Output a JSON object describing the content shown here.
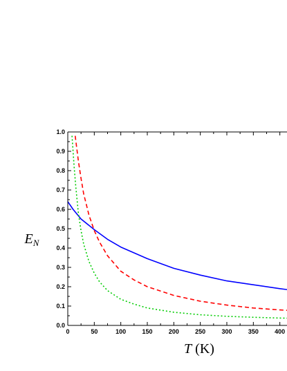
{
  "chart_data": {
    "type": "line",
    "xlabel": "T (K)",
    "xlabel_italic": "T",
    "xlabel_rest": " (K)",
    "ylabel": "E_N",
    "ylabel_main": "E",
    "ylabel_sub": "N",
    "xlim": [
      0,
      420
    ],
    "ylim": [
      0,
      1.0
    ],
    "x_ticks": [
      0,
      50,
      100,
      150,
      200,
      250,
      300,
      350,
      400
    ],
    "y_ticks": [
      0.0,
      0.1,
      0.2,
      0.3,
      0.4,
      0.5,
      0.6,
      0.7,
      0.8,
      0.9,
      1.0
    ],
    "x_tick_labels": [
      "0",
      "50",
      "100",
      "150",
      "200",
      "250",
      "300",
      "350",
      "400"
    ],
    "y_tick_labels": [
      "0.0",
      "0.1",
      "0.2",
      "0.3",
      "0.4",
      "0.5",
      "0.6",
      "0.7",
      "0.8",
      "0.9",
      "1.0"
    ],
    "grid": false,
    "series": [
      {
        "color": "#0000ff",
        "style": "solid",
        "x": [
          0,
          10,
          25,
          50,
          75,
          100,
          150,
          200,
          250,
          300,
          350,
          400,
          420
        ],
        "y": [
          0.64,
          0.6,
          0.55,
          0.495,
          0.445,
          0.405,
          0.345,
          0.295,
          0.26,
          0.23,
          0.21,
          0.19,
          0.183
        ]
      },
      {
        "color": "#ff0000",
        "style": "dashed",
        "x": [
          14,
          20,
          25,
          30,
          40,
          50,
          60,
          75,
          100,
          125,
          150,
          200,
          250,
          300,
          350,
          400,
          420
        ],
        "y": [
          0.98,
          0.85,
          0.76,
          0.68,
          0.57,
          0.49,
          0.43,
          0.36,
          0.28,
          0.235,
          0.2,
          0.155,
          0.125,
          0.105,
          0.09,
          0.08,
          0.077
        ]
      },
      {
        "color": "#00cc00",
        "style": "dotted",
        "x": [
          8,
          12,
          15,
          20,
          25,
          30,
          40,
          50,
          60,
          75,
          100,
          125,
          150,
          200,
          250,
          300,
          350,
          400,
          420
        ],
        "y": [
          0.98,
          0.82,
          0.72,
          0.58,
          0.49,
          0.42,
          0.33,
          0.27,
          0.225,
          0.18,
          0.135,
          0.11,
          0.09,
          0.068,
          0.055,
          0.047,
          0.042,
          0.038,
          0.037
        ]
      }
    ]
  }
}
